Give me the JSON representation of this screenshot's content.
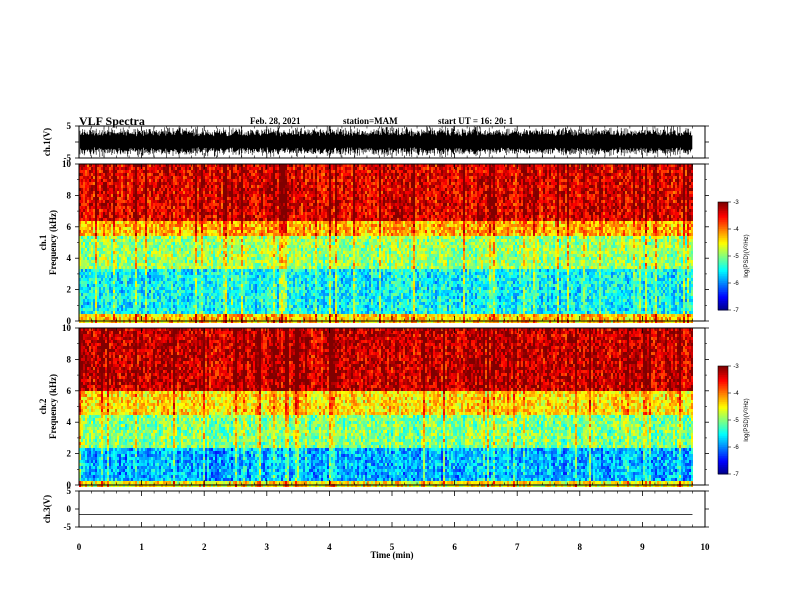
{
  "header": {
    "title": "VLF Spectra",
    "date": "Feb. 28, 2021",
    "station": "station=MAM",
    "start_ut": "start UT =   16: 20: 1"
  },
  "chart_data": [
    {
      "type": "line",
      "panel": "ch1-waveform",
      "ylabel": "ch.1(V)",
      "ylim": [
        -5,
        5
      ],
      "yticks": [
        "5",
        "-5"
      ],
      "description_values": "dense broadband noise spikes spanning the full range"
    },
    {
      "type": "heatmap",
      "panel": "ch1-spectrogram",
      "ylabel_line1": "ch.1",
      "ylabel_line2": "Frequency (kHz)",
      "ylim": [
        0,
        10
      ],
      "yticks": [
        "10",
        "8",
        "6",
        "4",
        "2",
        "0"
      ],
      "colorbar": {
        "label": "log(PSD)(V²/Hz)",
        "range": [
          -7,
          -3
        ],
        "ticks": [
          "-3",
          "-4",
          "-5",
          "-6",
          "-7"
        ]
      },
      "band_levels_kHz": [
        {
          "from": 6.5,
          "to": 10,
          "level": -3.4
        },
        {
          "from": 5.5,
          "to": 6.5,
          "level": -4.2
        },
        {
          "from": 3.5,
          "to": 5.5,
          "level": -4.9
        },
        {
          "from": 0.5,
          "to": 3.5,
          "level": -5.5
        },
        {
          "from": 0,
          "to": 0.5,
          "level": -4.3
        }
      ]
    },
    {
      "type": "heatmap",
      "panel": "ch2-spectrogram",
      "ylabel_line1": "ch.2",
      "ylabel_line2": "Frequency (kHz)",
      "ylim": [
        0,
        10
      ],
      "yticks": [
        "10",
        "8",
        "6",
        "4",
        "2",
        "0"
      ],
      "colorbar": {
        "label": "log(PSD)(V²/Hz)",
        "range": [
          -7,
          -3
        ],
        "ticks": [
          "-3",
          "-4",
          "-5",
          "-6",
          "-7"
        ]
      },
      "band_levels_kHz": [
        {
          "from": 6.0,
          "to": 10,
          "level": -3.3
        },
        {
          "from": 4.5,
          "to": 6.0,
          "level": -4.4
        },
        {
          "from": 2.5,
          "to": 4.5,
          "level": -5.0
        },
        {
          "from": 0.3,
          "to": 2.5,
          "level": -5.8
        },
        {
          "from": 0,
          "to": 0.3,
          "level": -4.5
        }
      ]
    },
    {
      "type": "line",
      "panel": "ch3-waveform",
      "ylabel": "ch.3(V)",
      "ylim": [
        -5,
        5
      ],
      "yticks": [
        "5",
        "0",
        "-5"
      ],
      "x": [
        0,
        9.8
      ],
      "y": [
        -1.5,
        -1.5
      ]
    }
  ],
  "xaxis": {
    "label": "Time (min)",
    "range": [
      0,
      10
    ],
    "ticks": [
      "0",
      "1",
      "2",
      "3",
      "4",
      "5",
      "6",
      "7",
      "8",
      "9",
      "10"
    ],
    "data_end": 9.8
  }
}
